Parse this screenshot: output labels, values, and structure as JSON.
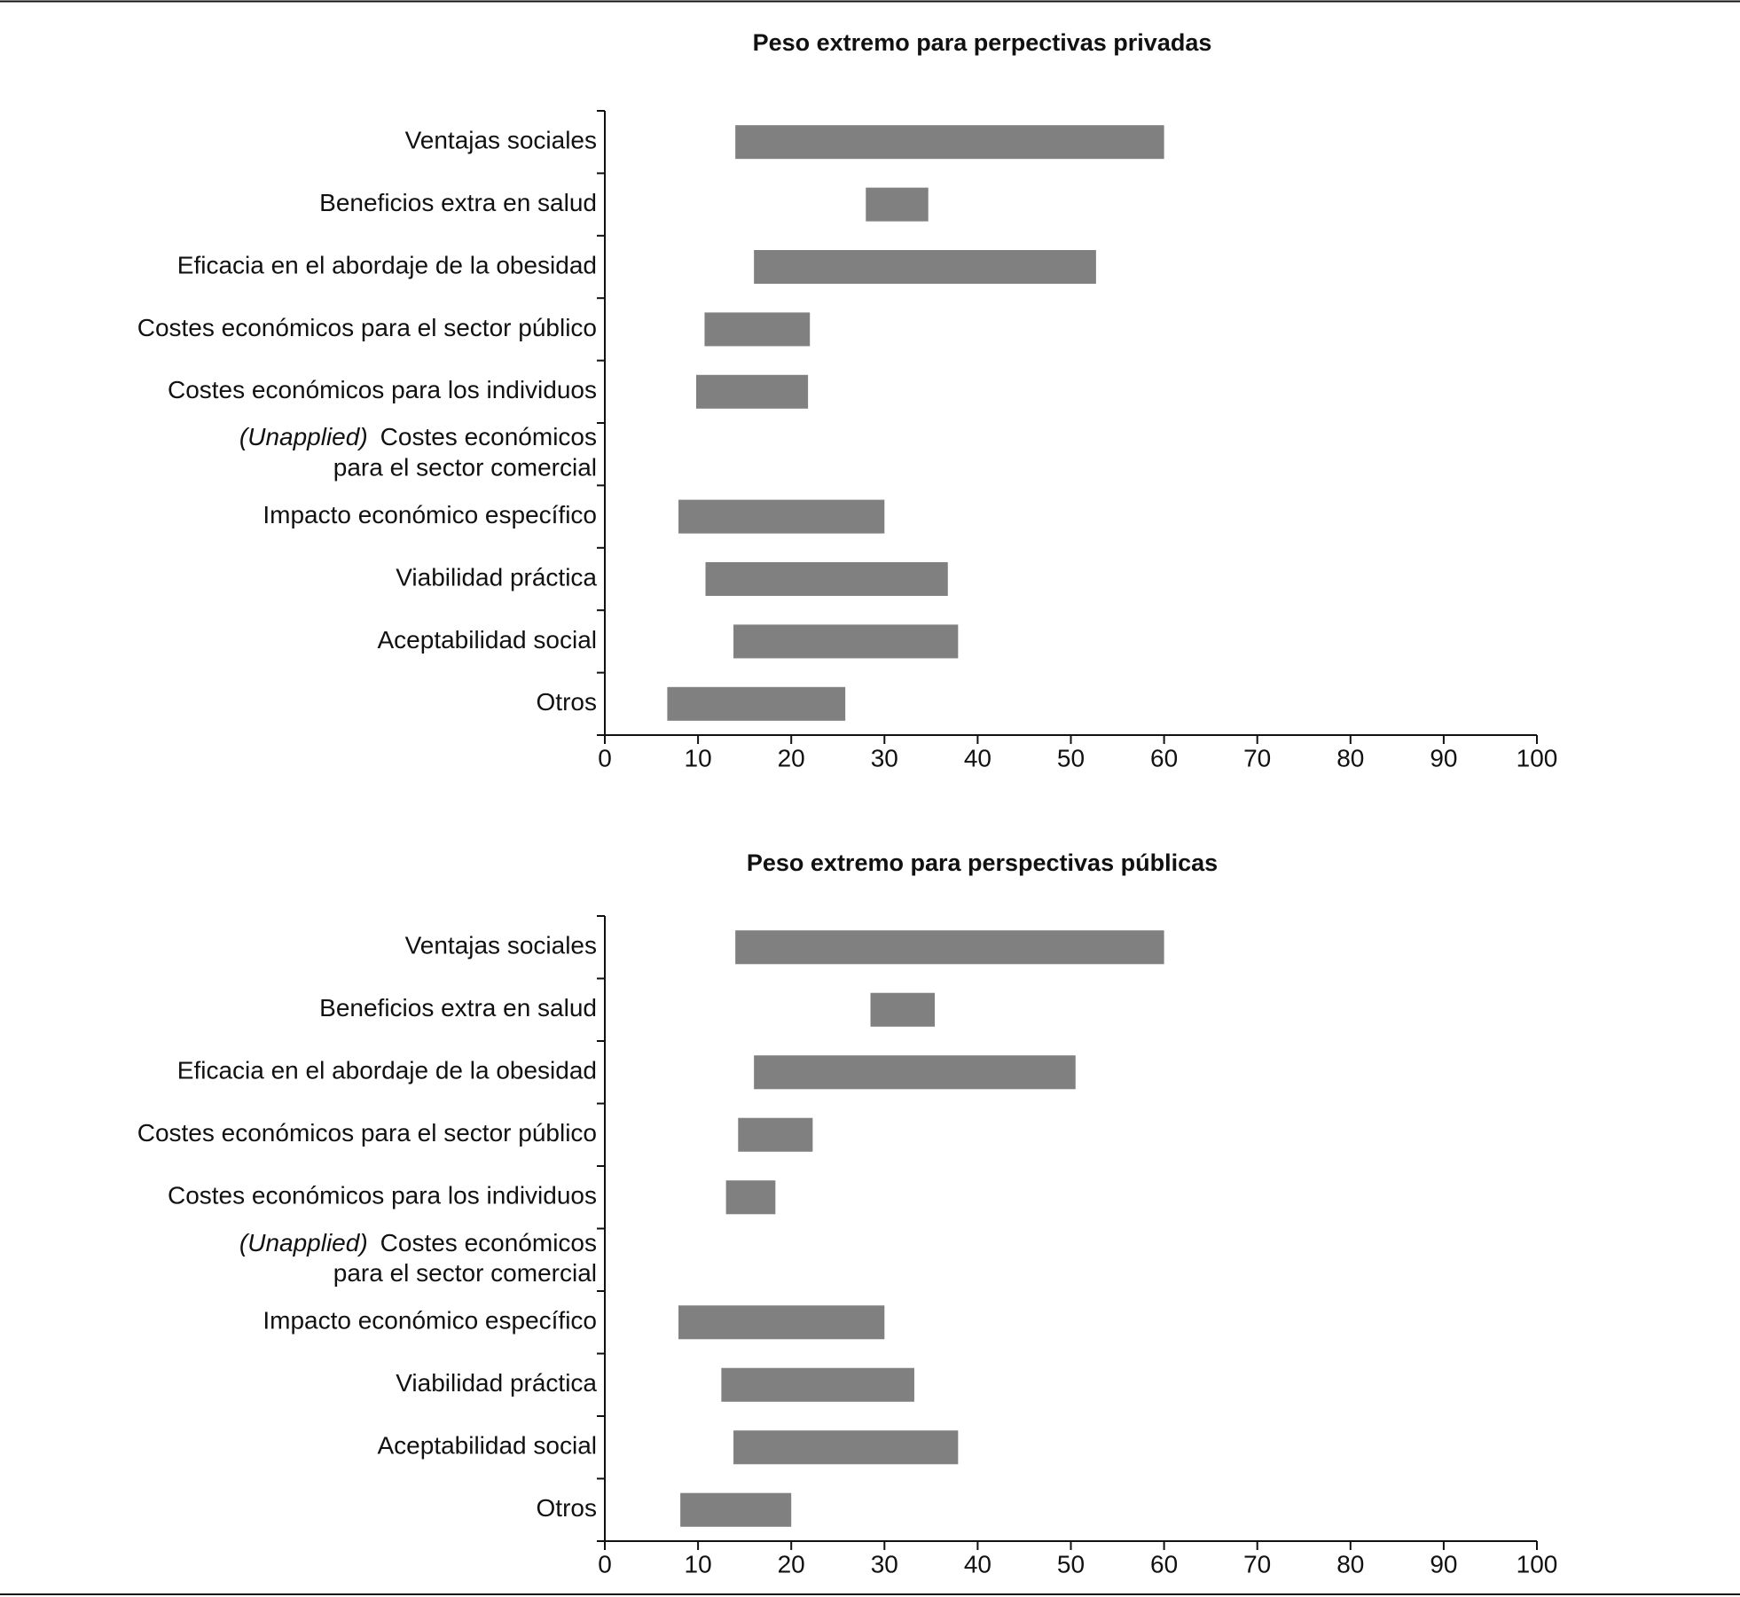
{
  "chart_data": [
    {
      "type": "range-bar",
      "title": "Peso extremo para  perpectivas privadas",
      "categories": [
        "Ventajas sociales",
        "Beneficios extra en salud",
        "Eficacia en el abordaje de la obesidad",
        "Costes económicos para el sector público",
        "Costes económicos para los individuos",
        {
          "italic": "(Unapplied)",
          "lines": [
            "Costes económicos",
            "para el sector comercial"
          ]
        },
        "Impacto económico específico",
        "Viabilidad práctica",
        "Aceptabilidad social",
        "Otros"
      ],
      "lows": [
        14,
        28,
        16,
        10.7,
        9.8,
        null,
        7.9,
        10.8,
        13.8,
        6.7
      ],
      "highs": [
        60,
        34.7,
        52.7,
        22,
        21.8,
        null,
        30,
        36.8,
        37.9,
        25.8
      ],
      "color": "#808080",
      "xlim": [
        0,
        100
      ],
      "xticks": [
        0,
        10,
        20,
        30,
        40,
        50,
        60,
        70,
        80,
        90,
        100
      ]
    },
    {
      "type": "range-bar",
      "title": "Peso extremo para  perspectivas públicas",
      "categories": [
        "Ventajas sociales",
        "Beneficios extra en salud",
        "Eficacia en el abordaje de la obesidad",
        "Costes económicos para el sector público",
        "Costes económicos para los individuos",
        {
          "italic": "(Unapplied)",
          "lines": [
            "Costes económicos",
            "para el sector comercial"
          ]
        },
        "Impacto económico específico",
        "Viabilidad práctica",
        "Aceptabilidad social",
        "Otros"
      ],
      "lows": [
        14,
        28.5,
        16,
        14.3,
        13,
        null,
        7.9,
        12.5,
        13.8,
        8.1
      ],
      "highs": [
        60,
        35.4,
        50.5,
        22.3,
        18.3,
        null,
        30,
        33.2,
        37.9,
        20
      ],
      "color": "#808080",
      "xlim": [
        0,
        100
      ],
      "xticks": [
        0,
        10,
        20,
        30,
        40,
        50,
        60,
        70,
        80,
        90,
        100
      ]
    }
  ]
}
